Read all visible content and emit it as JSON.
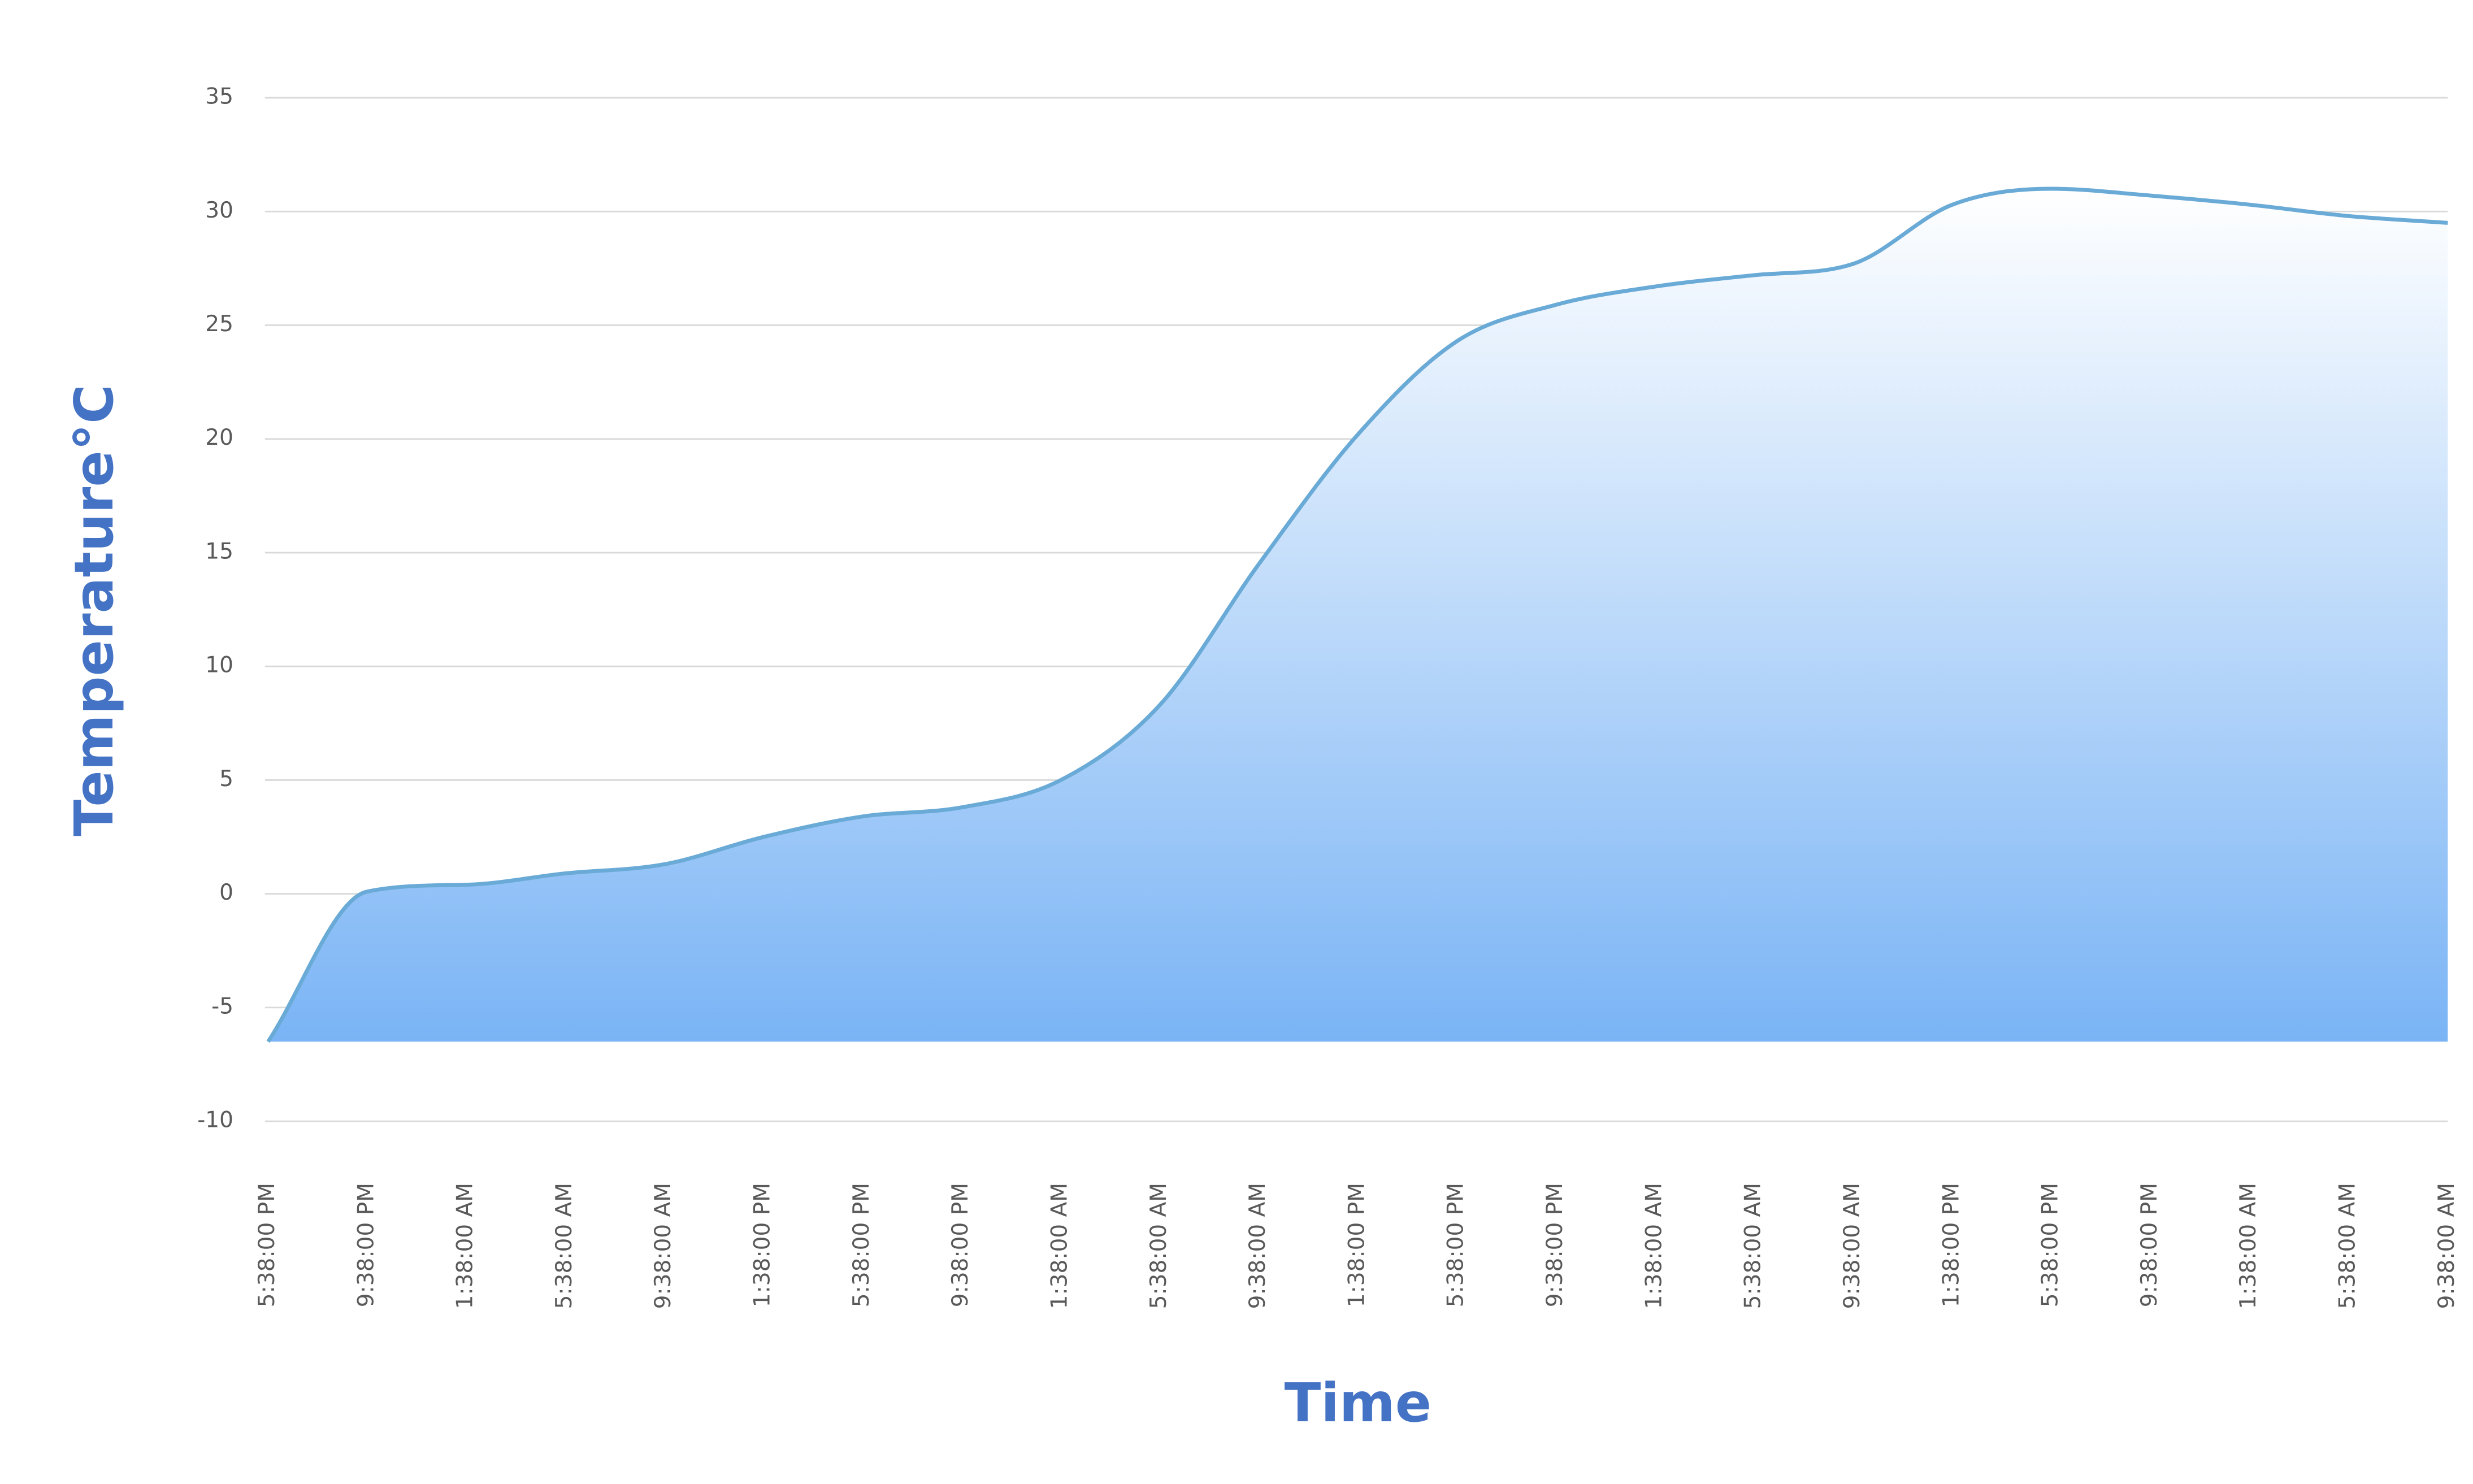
{
  "chart_data": {
    "type": "area",
    "x_label": "Time",
    "y_label": "Temperature°C",
    "categories": [
      "5:38:00 PM",
      "9:38:00 PM",
      "1:38:00 AM",
      "5:38:00 AM",
      "9:38:00 AM",
      "1:38:00 PM",
      "5:38:00 PM",
      "9:38:00 PM",
      "1:38:00 AM",
      "5:38:00 AM",
      "9:38:00 AM",
      "1:38:00 PM",
      "5:38:00 PM",
      "9:38:00 PM",
      "1:38:00 AM",
      "5:38:00 AM",
      "9:38:00 AM",
      "1:38:00 PM",
      "5:38:00 PM",
      "9:38:00 PM",
      "1:38:00 AM",
      "5:38:00 AM",
      "9:38:00 AM"
    ],
    "values": [
      -6.5,
      0.1,
      0.4,
      0.9,
      1.3,
      2.5,
      3.4,
      3.8,
      5.0,
      8.3,
      14.5,
      20.2,
      24.3,
      25.9,
      26.7,
      27.2,
      27.7,
      30.3,
      31.0,
      30.7,
      30.3,
      29.8,
      29.5
    ],
    "color": "#6aaad6",
    "ylim": [
      -10,
      35
    ],
    "yticks": [
      -10,
      -5,
      0,
      5,
      10,
      15,
      20,
      25,
      30,
      35
    ],
    "grid": true
  }
}
